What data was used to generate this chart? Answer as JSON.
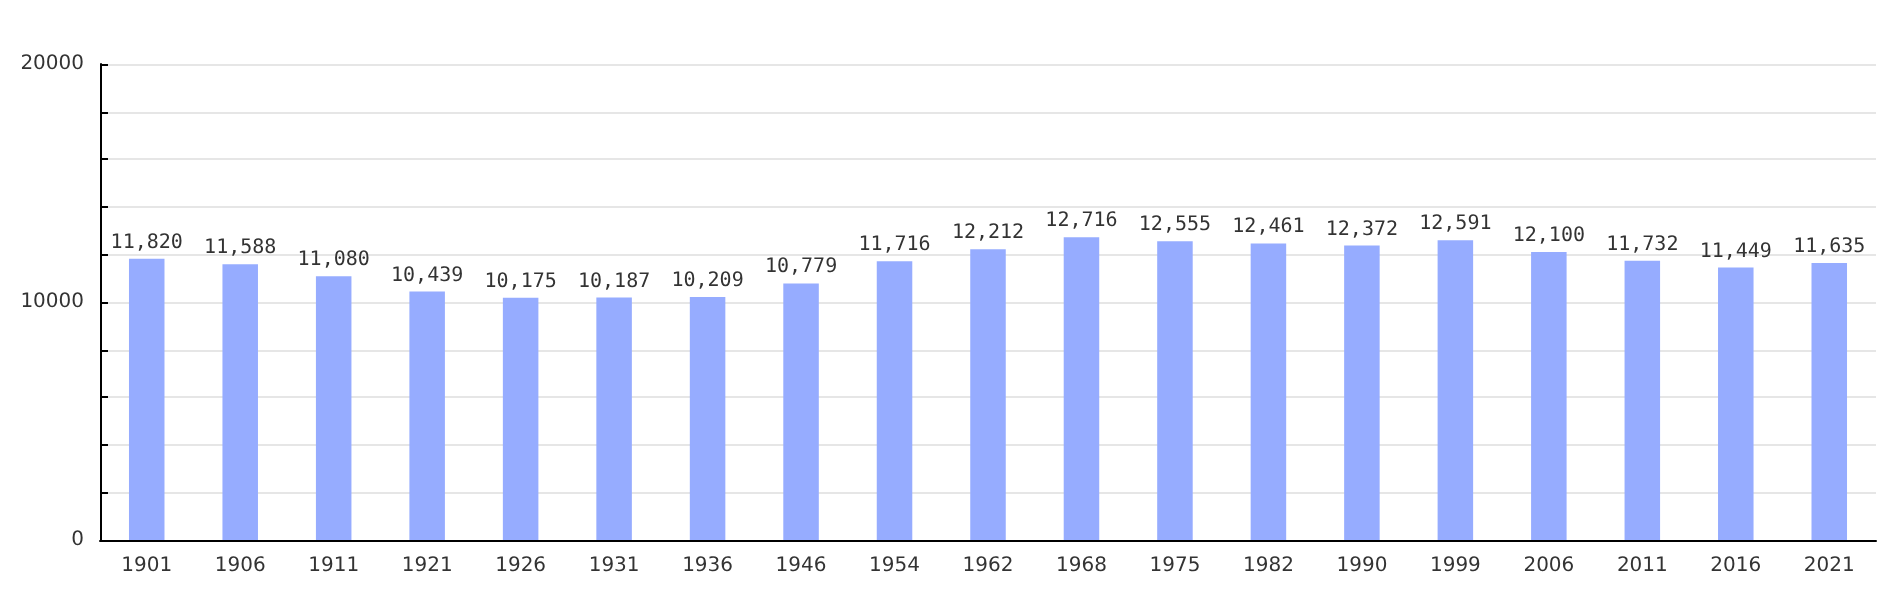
{
  "chart_data": {
    "type": "bar",
    "categories": [
      "1901",
      "1906",
      "1911",
      "1921",
      "1926",
      "1931",
      "1936",
      "1946",
      "1954",
      "1962",
      "1968",
      "1975",
      "1982",
      "1990",
      "1999",
      "2006",
      "2011",
      "2016",
      "2021"
    ],
    "values": [
      11820,
      11588,
      11080,
      10439,
      10175,
      10187,
      10209,
      10779,
      11716,
      12212,
      12716,
      12555,
      12461,
      12372,
      12591,
      12100,
      11732,
      11449,
      11635
    ],
    "value_labels": [
      "11,820",
      "11,588",
      "11,080",
      "10,439",
      "10,175",
      "10,187",
      "10,209",
      "10,779",
      "11,716",
      "12,212",
      "12,716",
      "12,555",
      "12,461",
      "12,372",
      "12,591",
      "12,100",
      "11,732",
      "11,449",
      "11,635"
    ],
    "color": "#96acff",
    "ylim": [
      0,
      20000
    ],
    "yticks": [
      0,
      {
        "value": 2000,
        "label": null
      },
      {
        "value": 4000,
        "label": null
      },
      {
        "value": 6000,
        "label": null
      },
      {
        "value": 8000,
        "label": null
      },
      10000,
      {
        "value": 12000,
        "label": null
      },
      {
        "value": 14000,
        "label": null
      },
      {
        "value": 16000,
        "label": null
      },
      {
        "value": 18000,
        "label": null
      },
      20000
    ],
    "grid": "y"
  }
}
